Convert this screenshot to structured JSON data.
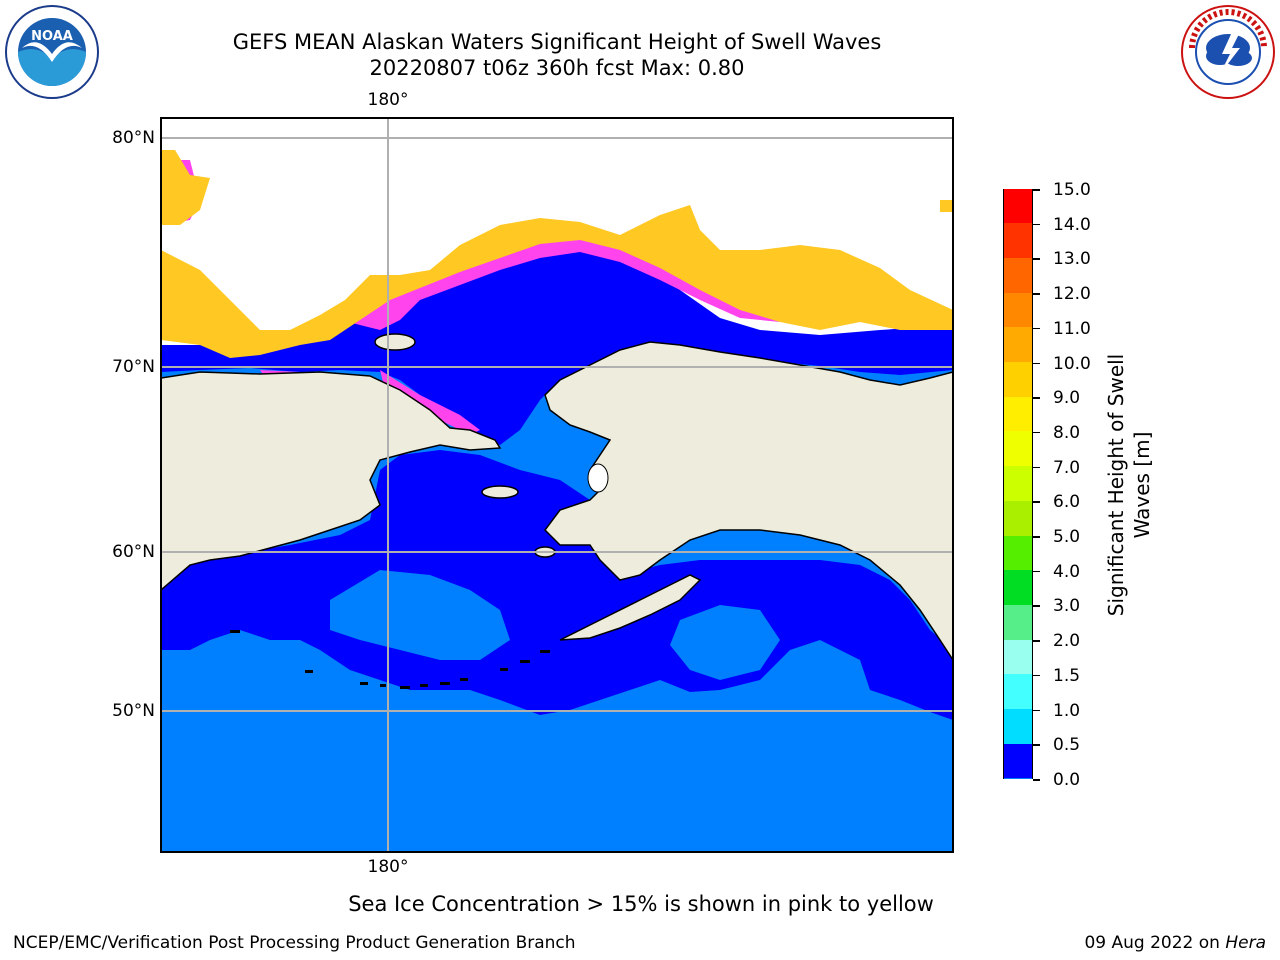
{
  "title_line1": "GEFS MEAN Alaskan Waters Significant Height of Swell Waves",
  "title_line2": "20220807 t06z 360h fcst   Max: 0.80",
  "logos": {
    "noaa": {
      "name": "NOAA",
      "icon": "noaa-logo"
    },
    "nws": {
      "name": "National Weather Service",
      "icon": "nws-logo"
    }
  },
  "map": {
    "lon_labels": {
      "top": "180°",
      "bottom": "180°"
    },
    "lat_labels": [
      "80°N",
      "70°N",
      "60°N",
      "50°N"
    ],
    "colors": {
      "land": "#eeecdc",
      "ocean_low": "#0080ff",
      "ocean_very_low": "#0000ff",
      "ice_pink": "#ff44ee",
      "ice_yellow": "#ffc822",
      "grid": "#b0b0b0"
    }
  },
  "colorbar": {
    "title_line1": "Significant Height of Swell",
    "title_line2": "Waves [m]",
    "ticks": [
      "15.0",
      "14.0",
      "13.0",
      "12.0",
      "11.0",
      "10.0",
      "9.0",
      "8.0",
      "7.0",
      "6.0",
      "5.0",
      "4.0",
      "3.0",
      "2.0",
      "1.5",
      "1.0",
      "0.5",
      "0.0"
    ],
    "colors": [
      "#ff0000",
      "#ff3300",
      "#ff6600",
      "#ff8800",
      "#ffaa00",
      "#ffd000",
      "#ffee00",
      "#f0ff00",
      "#ccff00",
      "#aaee00",
      "#55ee00",
      "#00dd22",
      "#55ee88",
      "#99ffee",
      "#44ffff",
      "#00ddff",
      "#0080ff",
      "#0000ff"
    ]
  },
  "note": "Sea Ice Concentration > 15% is shown in pink to yellow",
  "footer_left": "NCEP/EMC/Verification Post Processing Product Generation Branch",
  "footer_date": "09 Aug 2022 on ",
  "footer_machine": "Hera"
}
